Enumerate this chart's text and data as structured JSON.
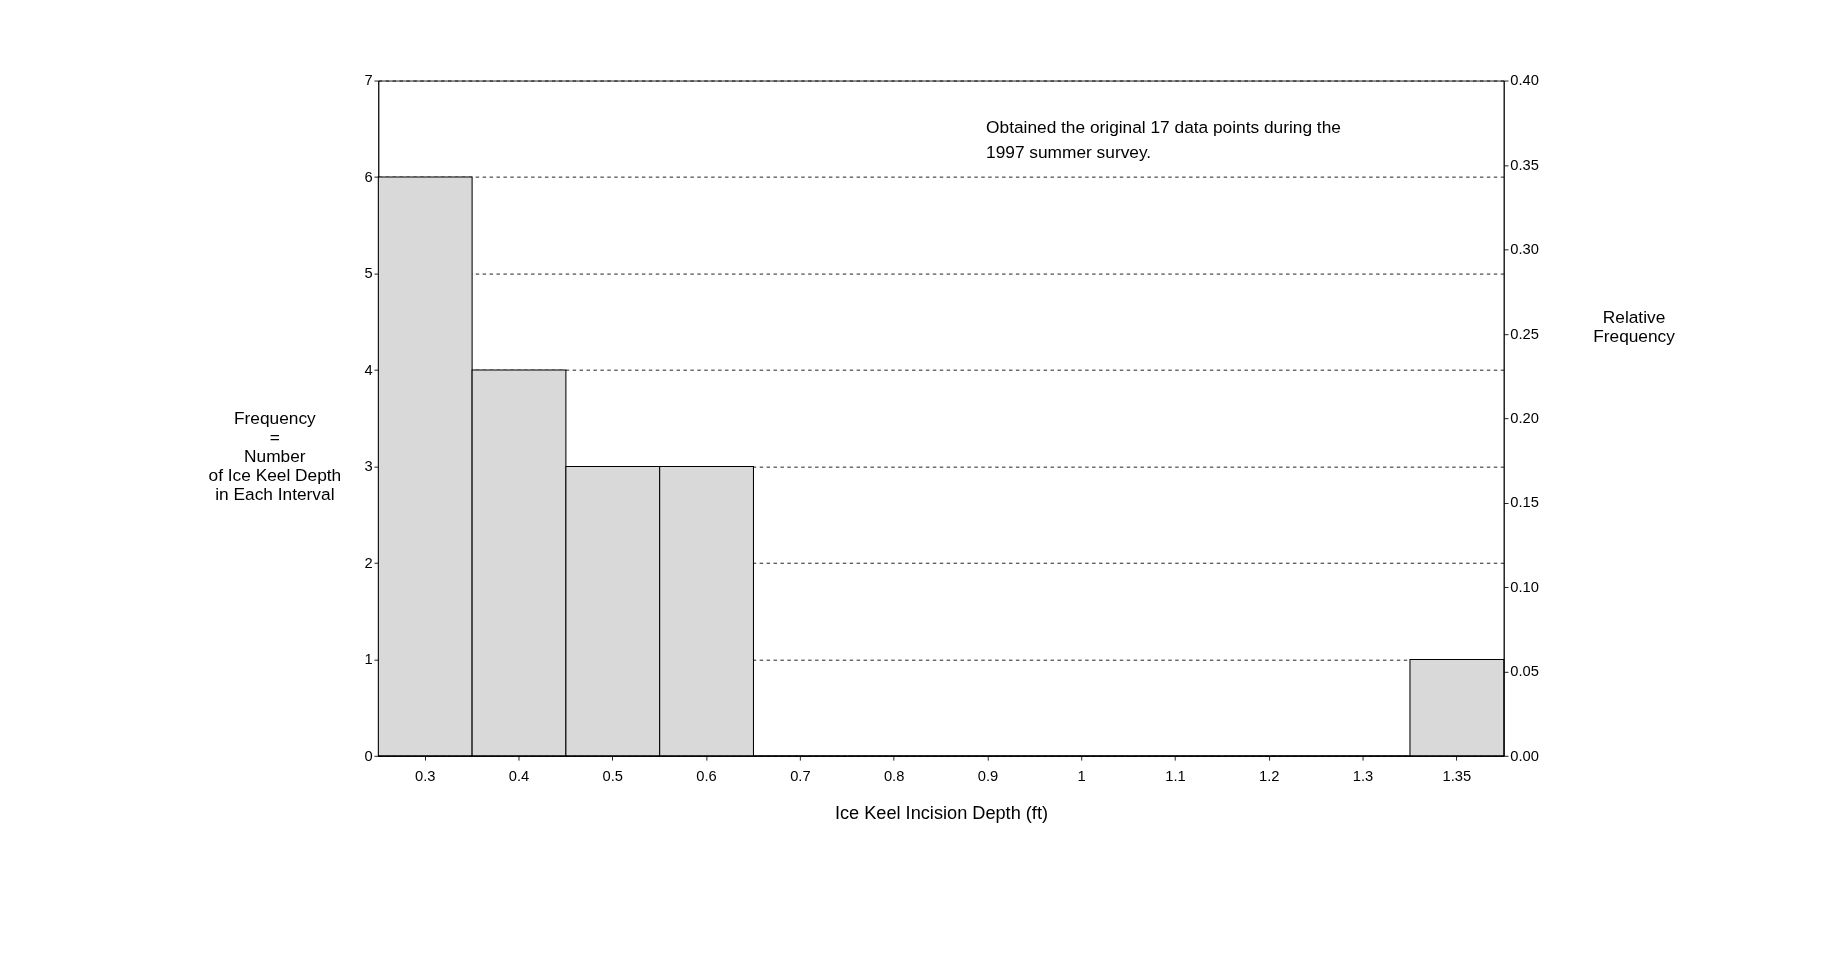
{
  "chart_data": {
    "type": "bar",
    "categories": [
      "0.3",
      "0.4",
      "0.5",
      "0.6",
      "0.7",
      "0.8",
      "0.9",
      "1",
      "1.1",
      "1.2",
      "1.3",
      "1.35"
    ],
    "values": [
      6,
      4,
      3,
      3,
      0,
      0,
      0,
      0,
      0,
      0,
      0,
      1
    ],
    "color": "#d9d9d9",
    "xlabel": "Ice Keel Incision Depth (ft)",
    "ylabel": "Frequency\n=\nNumber\nof Ice Keel Depth\nin Each Interval",
    "y2label": "Relative\nFrequency",
    "ylim": [
      0,
      7
    ],
    "yticks": [
      0,
      1,
      2,
      3,
      4,
      5,
      6,
      7
    ],
    "y2lim": [
      0,
      0.4
    ],
    "y2ticks": [
      {
        "value": 0,
        "label": "0.00"
      },
      {
        "value": 0.05,
        "label": "0.05"
      },
      {
        "value": 0.1,
        "label": "0.10"
      },
      {
        "value": 0.15,
        "label": "0.15"
      },
      {
        "value": 0.2,
        "label": "0.20"
      },
      {
        "value": 0.25,
        "label": "0.25"
      },
      {
        "value": 0.3,
        "label": "0.30"
      },
      {
        "value": 0.35,
        "label": "0.35"
      },
      {
        "value": 0.4,
        "label": "0.40"
      }
    ],
    "annotations": [
      "Obtained the original 17 data points during the\n1997 summer survey."
    ],
    "grid": "y",
    "line_style": "dashed"
  }
}
